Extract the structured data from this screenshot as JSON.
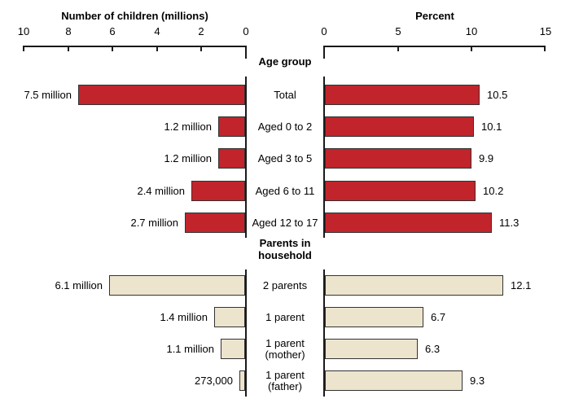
{
  "chart_data": {
    "type": "bar",
    "layout": "back-to-back horizontal bars, categories centered between mirrored axes",
    "left_axis": {
      "title": "Number of children (millions)",
      "tick_labels": [
        "10",
        "8",
        "6",
        "4",
        "2",
        "0"
      ],
      "range": [
        0,
        10
      ],
      "direction": "right-to-left"
    },
    "right_axis": {
      "title": "Percent",
      "tick_labels": [
        "0",
        "5",
        "10",
        "15"
      ],
      "range": [
        0,
        15
      ],
      "direction": "left-to-right"
    },
    "sections": [
      {
        "header_lines": [
          "Age group"
        ],
        "bar_color": "#C2242B",
        "rows": [
          {
            "label": "Total",
            "sublabel": "",
            "left_value": 7.5,
            "left_label": "7.5 million",
            "right_value": 10.5,
            "right_label": "10.5"
          },
          {
            "label": "Aged 0 to 2",
            "sublabel": "",
            "left_value": 1.2,
            "left_label": "1.2 million",
            "right_value": 10.1,
            "right_label": "10.1"
          },
          {
            "label": "Aged 3 to 5",
            "sublabel": "",
            "left_value": 1.2,
            "left_label": "1.2 million",
            "right_value": 9.9,
            "right_label": "9.9"
          },
          {
            "label": "Aged 6 to 11",
            "sublabel": "",
            "left_value": 2.4,
            "left_label": "2.4 million",
            "right_value": 10.2,
            "right_label": "10.2"
          },
          {
            "label": "Aged 12 to 17",
            "sublabel": "",
            "left_value": 2.7,
            "left_label": "2.7 million",
            "right_value": 11.3,
            "right_label": "11.3"
          }
        ]
      },
      {
        "header_lines": [
          "Parents in",
          "household"
        ],
        "bar_color": "#EDE4CE",
        "rows": [
          {
            "label": "2 parents",
            "sublabel": "",
            "left_value": 6.1,
            "left_label": "6.1 million",
            "right_value": 12.1,
            "right_label": "12.1"
          },
          {
            "label": "1 parent",
            "sublabel": "",
            "left_value": 1.4,
            "left_label": "1.4 million",
            "right_value": 6.7,
            "right_label": "6.7"
          },
          {
            "label": "1 parent",
            "sublabel": "(mother)",
            "left_value": 1.1,
            "left_label": "1.1 million",
            "right_value": 6.3,
            "right_label": "6.3"
          },
          {
            "label": "1 parent",
            "sublabel": "(father)",
            "left_value": 0.273,
            "left_label": "273,000",
            "right_value": 9.3,
            "right_label": "9.3"
          }
        ]
      }
    ],
    "colors": {
      "age_bar": "#C2242B",
      "parents_bar": "#EDE4CE",
      "bar_border": "#333333",
      "axis": "#1a1a1a"
    }
  }
}
